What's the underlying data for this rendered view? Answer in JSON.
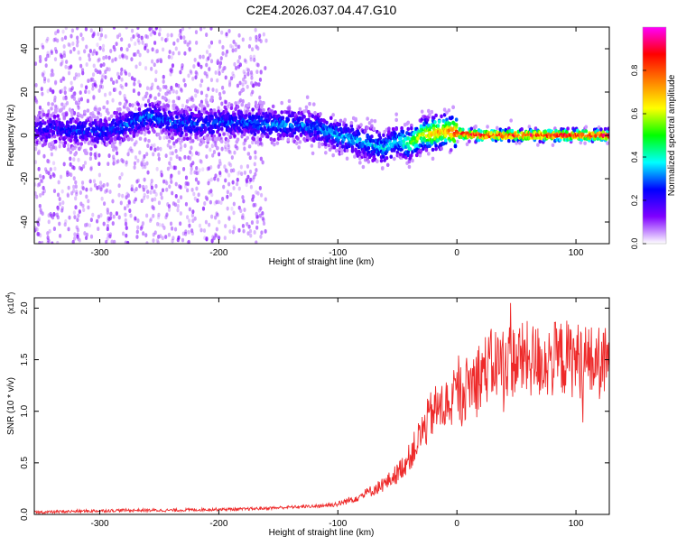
{
  "page": {
    "title": "C2E4.2026.037.04.47.G10"
  },
  "chart_data": [
    {
      "type": "heatmap",
      "title": "C2E4.2026.037.04.47.G10",
      "xlabel": "Height of straight line (km)",
      "ylabel": "Frequency (Hz)",
      "xlim": [
        -355,
        128
      ],
      "ylim": [
        -50,
        50
      ],
      "x_ticks": [
        -300,
        -200,
        -100,
        0,
        100
      ],
      "x_tick_labels": [
        "-300",
        "-200",
        "-100",
        "0",
        "100"
      ],
      "y_ticks": [
        -40,
        -20,
        0,
        20,
        40
      ],
      "y_tick_labels": [
        "-40",
        "-20",
        "0",
        "20",
        "40"
      ],
      "colorbar": {
        "label": "Normalized spectral amplitude",
        "range": [
          0,
          1
        ],
        "ticks": [
          0,
          0.2,
          0.4,
          0.6,
          0.8
        ],
        "tick_labels": [
          "0.0",
          "0.2",
          "0.4",
          "0.6",
          "0.8"
        ],
        "colormap": [
          "#ffffff",
          "#7f00ff",
          "#0000ff",
          "#00ffff",
          "#00ff00",
          "#ffff00",
          "#ff8000",
          "#ff0000",
          "#ff00ff"
        ]
      },
      "ridge": {
        "x": [
          -340,
          -320,
          -300,
          -280,
          -260,
          -240,
          -220,
          -200,
          -180,
          -160,
          -140,
          -120,
          -100,
          -80,
          -60,
          -50,
          -40,
          -30,
          -20,
          -10,
          0,
          20,
          60,
          100,
          128
        ],
        "y": [
          3,
          2,
          2,
          4,
          9,
          6,
          5,
          6,
          6,
          5,
          5,
          4,
          0,
          -3,
          -6,
          -2,
          -4,
          0,
          1,
          2,
          1,
          0,
          0,
          0,
          0
        ],
        "amplitude": [
          0.22,
          0.26,
          0.26,
          0.28,
          0.3,
          0.28,
          0.28,
          0.28,
          0.28,
          0.32,
          0.3,
          0.3,
          0.34,
          0.34,
          0.38,
          0.36,
          0.5,
          0.6,
          0.7,
          0.7,
          0.9,
          0.9,
          0.9,
          0.9,
          0.9
        ]
      },
      "grid": false
    },
    {
      "type": "line",
      "xlabel": "Height of straight line (km)",
      "ylabel": "SNR (10 * v/v)",
      "y_multiplier": "(x10",
      "y_multiplier_exp": "4",
      "y_multiplier_close": ")",
      "xlim": [
        -355,
        128
      ],
      "ylim": [
        0,
        2.1
      ],
      "x_ticks": [
        -300,
        -200,
        -100,
        0,
        100
      ],
      "x_tick_labels": [
        "-300",
        "-200",
        "-100",
        "0",
        "100"
      ],
      "y_ticks": [
        0,
        0.5,
        1,
        1.5,
        2
      ],
      "y_tick_labels": [
        "0.0",
        "0.5",
        "1.0",
        "1.5",
        "2.0"
      ],
      "color": "#ee2a2a",
      "series": [
        {
          "x": [
            -355,
            -320,
            -280,
            -240,
            -200,
            -180,
            -160,
            -140,
            -120,
            -100,
            -90,
            -80,
            -70,
            -60,
            -50,
            -40,
            -30,
            -20,
            -10,
            0,
            10,
            20,
            30,
            40,
            50,
            60,
            70,
            80,
            90,
            100,
            110,
            128
          ],
          "values": [
            0.02,
            0.03,
            0.04,
            0.04,
            0.05,
            0.05,
            0.06,
            0.07,
            0.08,
            0.1,
            0.14,
            0.18,
            0.24,
            0.3,
            0.4,
            0.55,
            0.78,
            1.0,
            1.05,
            1.15,
            1.25,
            1.38,
            1.45,
            1.48,
            1.5,
            1.5,
            1.48,
            1.5,
            1.52,
            1.5,
            1.48,
            1.45
          ]
        }
      ],
      "grid": false
    }
  ]
}
